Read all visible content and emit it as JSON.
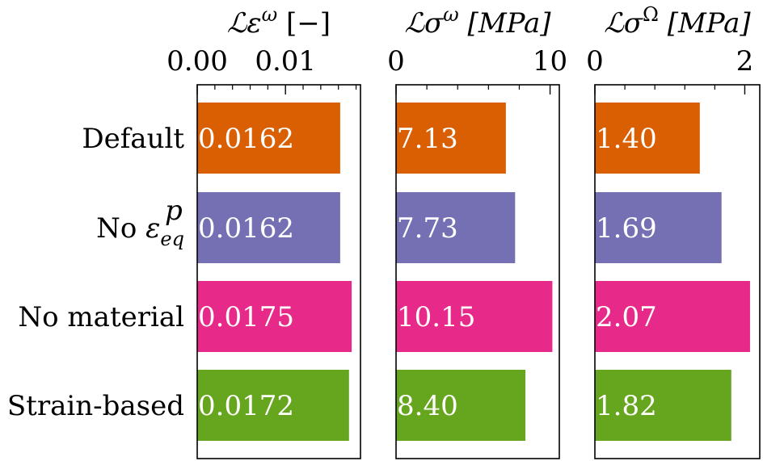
{
  "chart_data": {
    "type": "bar",
    "orientation": "horizontal",
    "categories": [
      "Default",
      "No εpeq",
      "No material",
      "Strain-based"
    ],
    "category_labels": [
      {
        "text": "Default"
      },
      {
        "text": "No ε",
        "sup": "p",
        "sub": "eq"
      },
      {
        "text": "No material"
      },
      {
        "text": "Strain-based"
      }
    ],
    "colors": [
      "#d95f02",
      "#7570b3",
      "#e7298a",
      "#66a61e"
    ],
    "panels": [
      {
        "title": "ℒε^ω [−]",
        "title_parts": {
          "main": "ℒε",
          "sup": "ω",
          "unit": "[−]"
        },
        "xlim": [
          0,
          0.0185
        ],
        "xticks": [
          0.0,
          0.01
        ],
        "xtick_labels": [
          "0.00",
          "0.01"
        ],
        "values": [
          0.0162,
          0.0162,
          0.0175,
          0.0172
        ],
        "value_labels": [
          "0.0162",
          "0.0162",
          "0.0175",
          "0.0172"
        ]
      },
      {
        "title": "ℒσ^ω [MPa]",
        "title_parts": {
          "main": "ℒσ",
          "sup": "ω",
          "unit": "[MPa]"
        },
        "xlim": [
          0,
          10.6
        ],
        "xticks": [
          0,
          10
        ],
        "xtick_labels": [
          "0",
          "10"
        ],
        "values": [
          7.13,
          7.73,
          10.15,
          8.4
        ],
        "value_labels": [
          "7.13",
          "7.73",
          "10.15",
          "8.40"
        ]
      },
      {
        "title": "ℒσ^Ω [MPa]",
        "title_parts": {
          "main": "ℒσ",
          "sup": "Ω",
          "unit": "[MPa]"
        },
        "xlim": [
          0,
          2.2
        ],
        "xticks": [
          0,
          2
        ],
        "xtick_labels": [
          "0",
          "2"
        ],
        "values": [
          1.4,
          1.69,
          2.07,
          1.82
        ],
        "value_labels": [
          "1.40",
          "1.69",
          "2.07",
          "1.82"
        ]
      }
    ],
    "grid": false,
    "legend": "none"
  }
}
